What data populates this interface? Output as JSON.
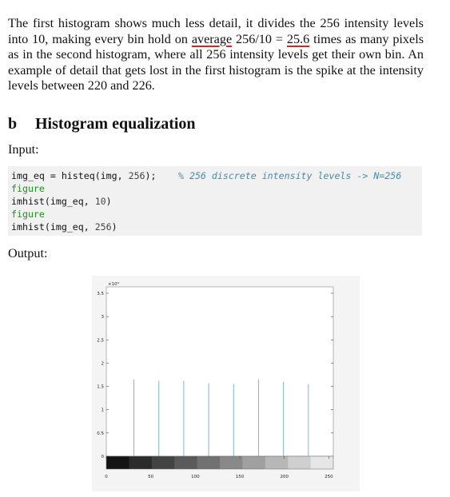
{
  "paragraph": {
    "part1": "The first histogram shows much less detail, it divides the 256 intensity levels into 10, making every bin hold on ",
    "average": "average",
    "part2": " 256/10 = ",
    "value": "25.6",
    "part3": " times as many pixels as in the second histogram, where all 256 intensity levels get their own bin. An example of detail that gets lost in the first histogram is the spike at the intensity levels between 220 and 226."
  },
  "section": {
    "number": "b",
    "title": "Histogram equalization"
  },
  "input_label": "Input:",
  "output_label": "Output:",
  "code": {
    "line1_a": "img_eq = histeq(img, ",
    "line1_num": "256",
    "line1_b": ");",
    "line1_comment": "% 256 discrete intensity levels -> N=256",
    "line2": "figure",
    "line3_a": "imhist(img_eq, ",
    "line3_num": "10",
    "line3_b": ")",
    "line4": "figure",
    "line5_a": "imhist(img_eq, ",
    "line5_num": "256",
    "line5_b": ")"
  },
  "chart_data": {
    "type": "bar",
    "title": "",
    "xlabel": "",
    "ylabel": "",
    "y_multiplier_label": "×10⁴",
    "xlim": [
      0,
      255
    ],
    "ylim": [
      0,
      3.5
    ],
    "x_ticks": [
      "0",
      "50",
      "100",
      "150",
      "200",
      "250"
    ],
    "y_ticks": [
      "0",
      "0.5",
      "1",
      "1.5",
      "2",
      "2.5",
      "3",
      "3.5"
    ],
    "x": [
      31,
      59,
      87,
      115,
      143,
      171,
      199,
      227
    ],
    "values": [
      1.65,
      1.62,
      1.62,
      1.57,
      1.55,
      1.65,
      1.6,
      1.55
    ],
    "bar_color": "#7fb2d9",
    "colorbar": true
  }
}
